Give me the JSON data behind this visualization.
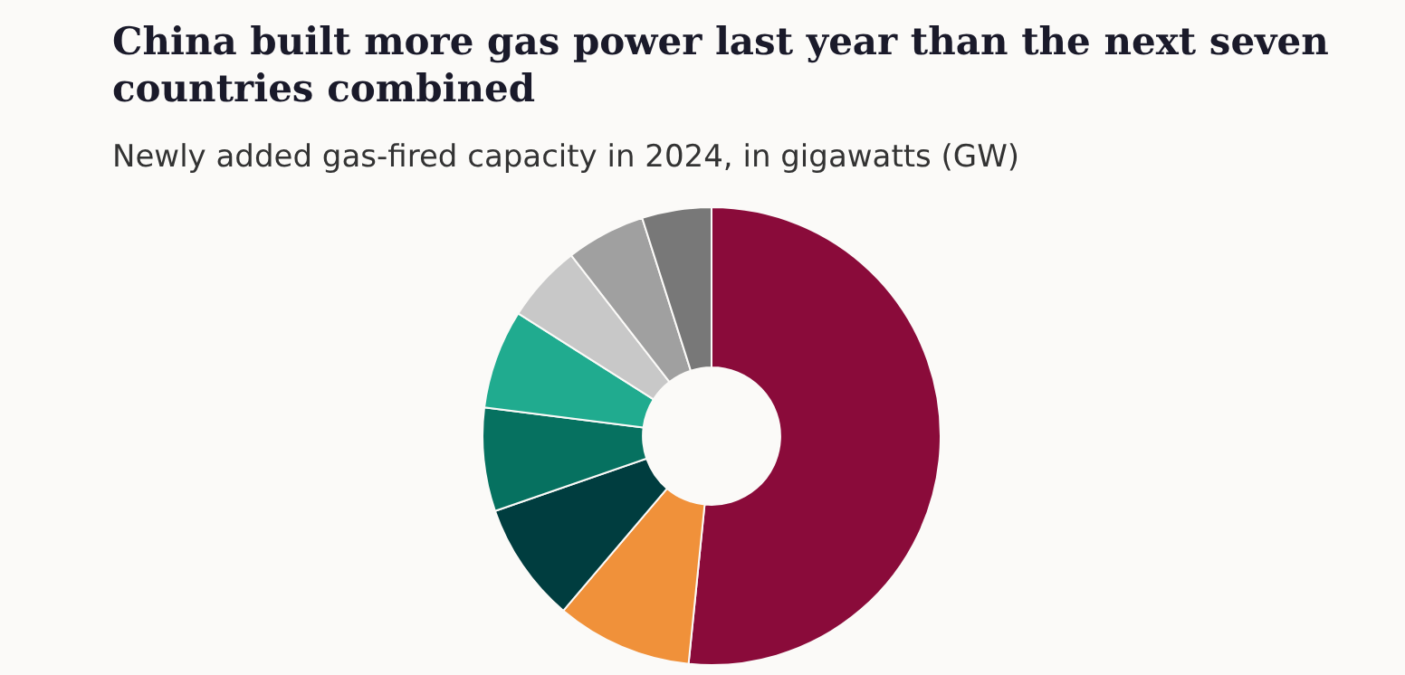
{
  "chart_data": {
    "type": "donut",
    "title": "China built more gas power last year than the next seven countries combined",
    "subtitle": "Newly added gas-fired capacity in 2024, in gigawatts (GW)",
    "categories": [
      null,
      null,
      null,
      null,
      null,
      null,
      null,
      null
    ],
    "values": [
      51.6,
      9.6,
      8.5,
      7.3,
      7.0,
      5.5,
      5.6,
      4.9
    ],
    "colors": [
      "#8a0b3a",
      "#f0913a",
      "#003d3f",
      "#067160",
      "#20ab8f",
      "#c8c8c8",
      "#a0a0a0",
      "#787878"
    ],
    "legend": false
  }
}
